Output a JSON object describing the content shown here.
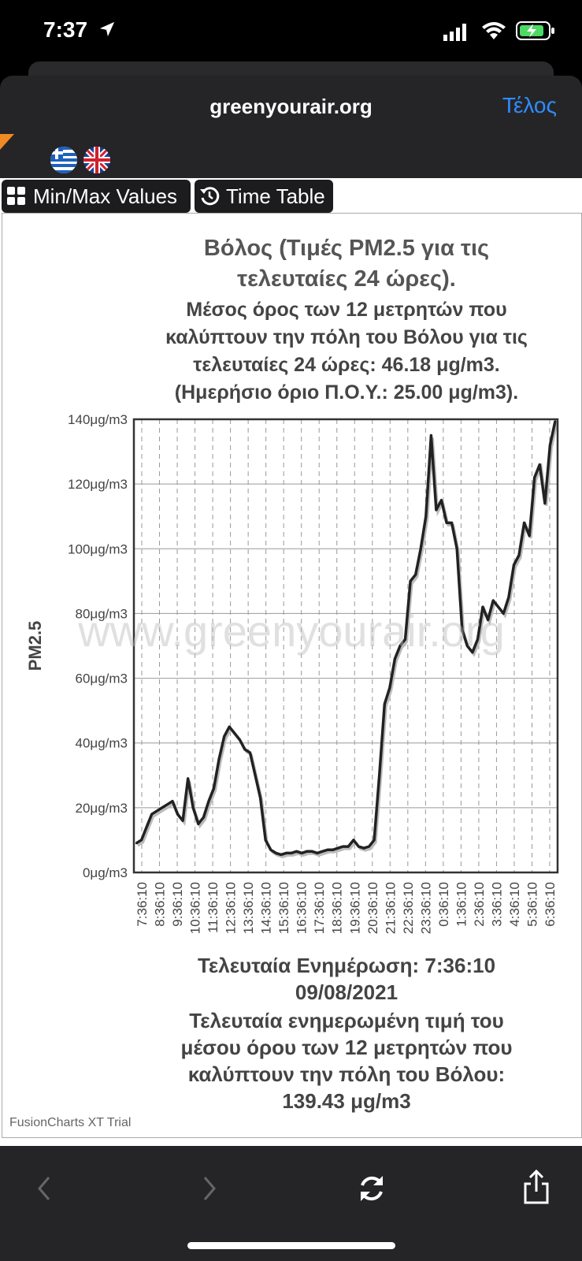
{
  "status": {
    "time": "7:37"
  },
  "browser": {
    "domain": "greenyourair.org",
    "done_label": "Τέλος"
  },
  "buttons": {
    "minmax": "Min/Max Values",
    "timetable": "Time Table"
  },
  "captions": {
    "line1": "Βόλος (Τιμές PM2.5 για τις",
    "line2": "τελευταίες 24 ώρες).",
    "line3": "Μέσος όρος των 12 μετρητών που",
    "line4": "καλύπτουν την πόλη του Βόλου για τις",
    "line5": "τελευταίες 24 ώρες: 46.18 μg/m3.",
    "line6": "(Ημερήσιο όριο Π.Ο.Υ.: 25.00 μg/m3).",
    "b1": "Τελευταία Ενημέρωση: 7:36:10",
    "b2": "09/08/2021",
    "b3": "Τελευταία ενημερωμένη τιμή του",
    "b4": "μέσου όρου των 12 μετρητών που",
    "b5": "καλύπτουν την πόλη του Βόλου:",
    "b6": "139.43 μg/m3"
  },
  "watermark": "www.greenyourair.org",
  "trial": "FusionCharts XT Trial",
  "chart_data": {
    "type": "line",
    "ylabel": "PM2.5",
    "ylim": [
      0,
      140
    ],
    "y_ticks": [
      "0μg/m3",
      "20μg/m3",
      "40μg/m3",
      "60μg/m3",
      "80μg/m3",
      "100μg/m3",
      "120μg/m3",
      "140μg/m3"
    ],
    "x_ticks": [
      "7:36:10",
      "8:36:10",
      "9:36:10",
      "10:36:10",
      "11:36:10",
      "12:36:10",
      "13:36:10",
      "14:36:10",
      "15:36:10",
      "16:36:10",
      "17:36:10",
      "18:36:10",
      "19:36:10",
      "20:36:10",
      "21:36:10",
      "22:36:10",
      "23:36:10",
      "0:36:10",
      "1:36:10",
      "2:36:10",
      "3:36:10",
      "4:36:10",
      "5:36:10",
      "6:36:10"
    ],
    "values": [
      9,
      10,
      14,
      18,
      19,
      20,
      21,
      22,
      18,
      16,
      29,
      20,
      15,
      17,
      22,
      26,
      35,
      42,
      45,
      43,
      41,
      38,
      37,
      30,
      23,
      10,
      7,
      6,
      5.5,
      6,
      6,
      6.5,
      6,
      6.5,
      6.5,
      6,
      6.5,
      7,
      7,
      7.5,
      8,
      8,
      10,
      8,
      7.5,
      8,
      10,
      30,
      52,
      57,
      66,
      70,
      72,
      90,
      92,
      100,
      110,
      135,
      112,
      115,
      108,
      108,
      100,
      75,
      70,
      68,
      72,
      82,
      78,
      84,
      82,
      80,
      85,
      95,
      98,
      108,
      104,
      122,
      126,
      114,
      132,
      139.43
    ]
  },
  "colors": {
    "line": "#222222",
    "accent": "#2f8cff",
    "bar": "#252527"
  }
}
